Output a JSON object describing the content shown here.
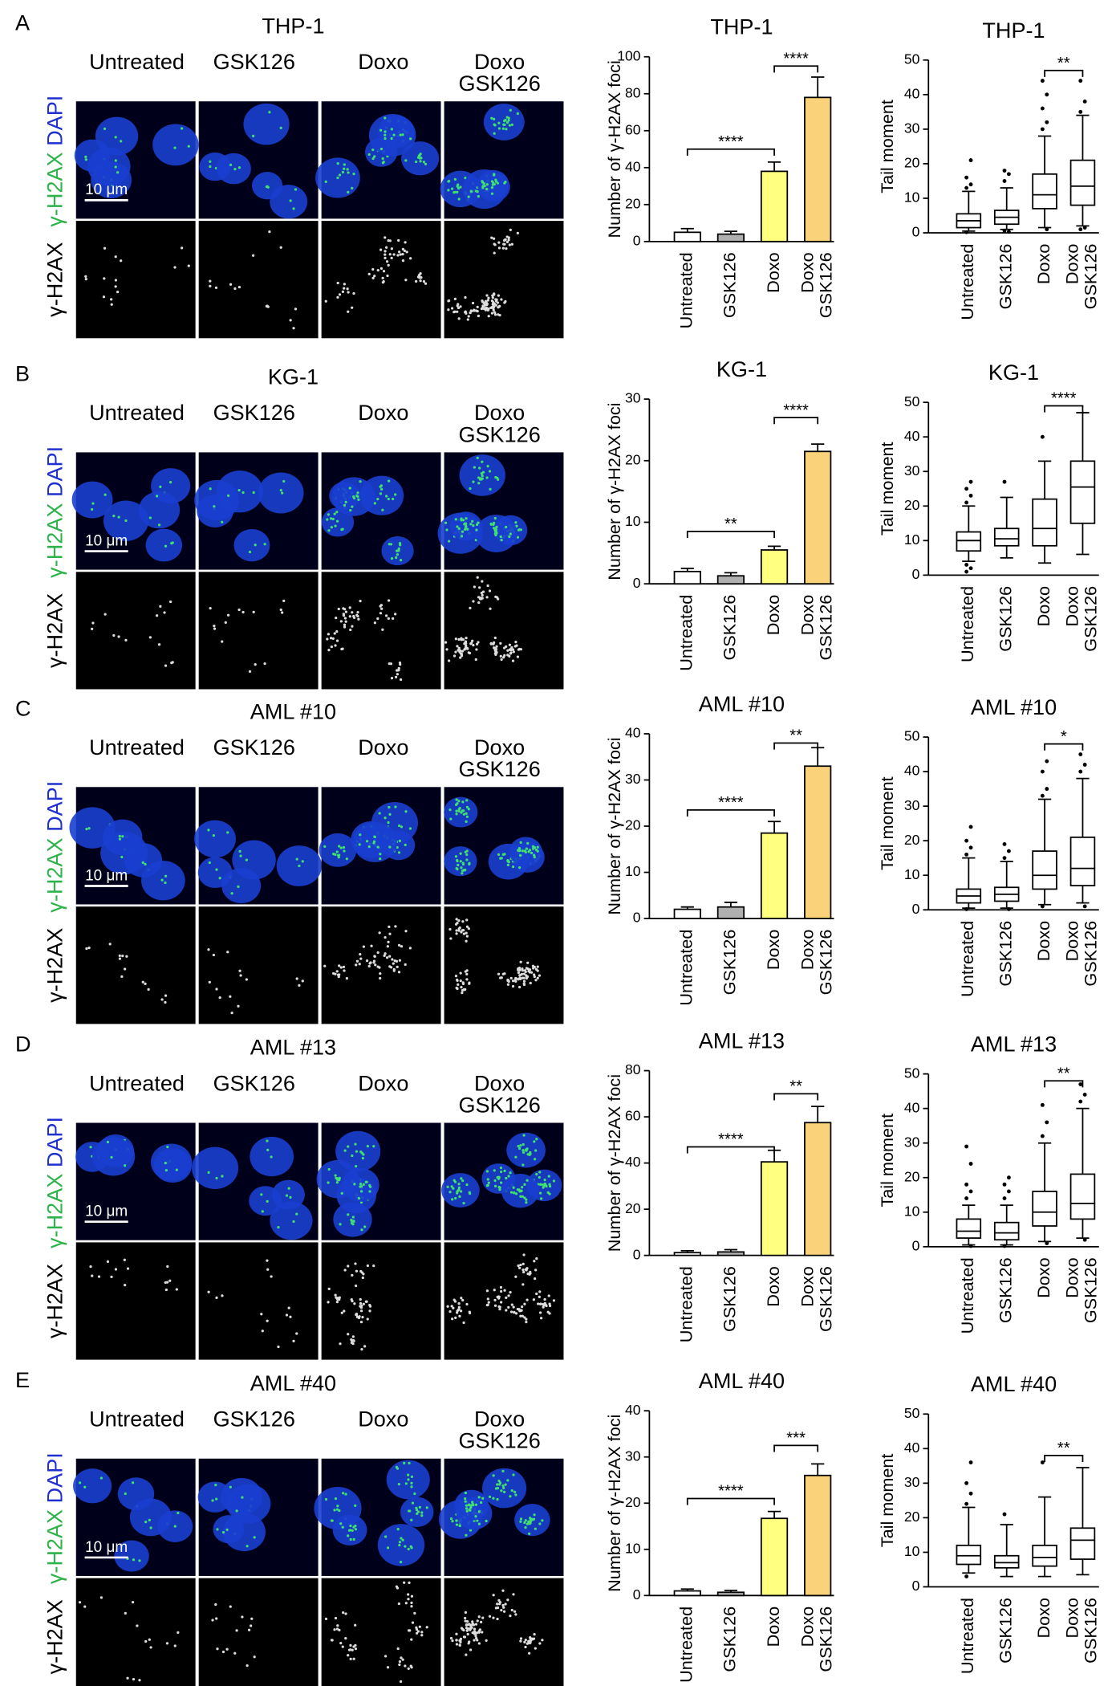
{
  "panels": [
    {
      "letter": "A",
      "title": "THP-1",
      "columns": [
        [
          "Untreated"
        ],
        [
          "GSK126"
        ],
        [
          "Doxo"
        ],
        [
          "Doxo",
          "GSK126"
        ]
      ],
      "row_labels": [
        [
          "γ-H2AX",
          "DAPI"
        ],
        [
          "γ-H2AX"
        ]
      ],
      "scale_bar": "10 μm"
    },
    {
      "letter": "B",
      "title": "KG-1",
      "columns": [
        [
          "Untreated"
        ],
        [
          "GSK126"
        ],
        [
          "Doxo"
        ],
        [
          "Doxo",
          "GSK126"
        ]
      ],
      "row_labels": [
        [
          "γ-H2AX",
          "DAPI"
        ],
        [
          "γ-H2AX"
        ]
      ],
      "scale_bar": "10 μm"
    },
    {
      "letter": "C",
      "title": "AML #10",
      "columns": [
        [
          "Untreated"
        ],
        [
          "GSK126"
        ],
        [
          "Doxo"
        ],
        [
          "Doxo",
          "GSK126"
        ]
      ],
      "row_labels": [
        [
          "γ-H2AX",
          "DAPI"
        ],
        [
          "γ-H2AX"
        ]
      ],
      "scale_bar": "10 μm"
    },
    {
      "letter": "D",
      "title": "AML #13",
      "columns": [
        [
          "Untreated"
        ],
        [
          "GSK126"
        ],
        [
          "Doxo"
        ],
        [
          "Doxo",
          "GSK126"
        ]
      ],
      "row_labels": [
        [
          "γ-H2AX",
          "DAPI"
        ],
        [
          "γ-H2AX"
        ]
      ],
      "scale_bar": "10 μm"
    },
    {
      "letter": "E",
      "title": "AML #40",
      "columns": [
        [
          "Untreated"
        ],
        [
          "GSK126"
        ],
        [
          "Doxo"
        ],
        [
          "Doxo",
          "GSK126"
        ]
      ],
      "row_labels": [
        [
          "γ-H2AX",
          "DAPI"
        ],
        [
          "γ-H2AX"
        ]
      ],
      "scale_bar": "10 μm"
    }
  ],
  "chart_data": [
    {
      "type": "bar",
      "title": "THP-1",
      "ylabel": "Number of γ-H2AX foci",
      "categories": [
        [
          "Untreated"
        ],
        [
          "GSK126"
        ],
        [
          "Doxo"
        ],
        [
          "Doxo",
          "GSK126"
        ]
      ],
      "values": [
        5,
        4,
        38,
        78
      ],
      "errors": [
        2,
        1.5,
        5,
        11
      ],
      "colors": [
        "#ffffff",
        "#b0b0b0",
        "#ffff80",
        "#f9d27a"
      ],
      "ylim": [
        0,
        100
      ],
      "yticks": [
        0,
        20,
        40,
        60,
        80,
        100
      ],
      "brackets": [
        {
          "between": [
            0,
            2
          ],
          "y": 50,
          "label": "****"
        },
        {
          "between": [
            2,
            3
          ],
          "y": 95,
          "label": "****"
        }
      ]
    },
    {
      "type": "box",
      "title": "THP-1",
      "ylabel": "Tail moment",
      "categories": [
        [
          "Untreated"
        ],
        [
          "GSK126"
        ],
        [
          "Doxo"
        ],
        [
          "Doxo",
          "GSK126"
        ]
      ],
      "ylim": [
        0,
        50
      ],
      "yticks": [
        0,
        10,
        20,
        30,
        40,
        50
      ],
      "boxes": [
        {
          "low": 0.5,
          "q1": 1.5,
          "median": 3.5,
          "q3": 5.5,
          "high": 12,
          "outliers": [
            13,
            14,
            16,
            21,
            0.2
          ]
        },
        {
          "low": 1,
          "q1": 2.5,
          "median": 4.5,
          "q3": 6.5,
          "high": 13,
          "outliers": [
            15,
            17,
            18,
            0.3,
            0.6
          ]
        },
        {
          "low": 1.5,
          "q1": 7,
          "median": 11,
          "q3": 17,
          "high": 28,
          "outliers": [
            30,
            32,
            36,
            40,
            44,
            1
          ]
        },
        {
          "low": 2,
          "q1": 8,
          "median": 13.5,
          "q3": 21,
          "high": 34,
          "outliers": [
            35,
            38,
            44,
            1.5,
            1
          ]
        }
      ],
      "brackets": [
        {
          "between": [
            2,
            3
          ],
          "y": 47,
          "label": "**"
        }
      ]
    },
    {
      "type": "bar",
      "title": "KG-1",
      "ylabel": "Number of γ-H2AX foci",
      "categories": [
        [
          "Untreated"
        ],
        [
          "GSK126"
        ],
        [
          "Doxo"
        ],
        [
          "Doxo",
          "GSK126"
        ]
      ],
      "values": [
        2,
        1.3,
        5.5,
        21.5
      ],
      "errors": [
        0.5,
        0.5,
        0.6,
        1.2
      ],
      "colors": [
        "#ffffff",
        "#b0b0b0",
        "#ffff80",
        "#f9d27a"
      ],
      "ylim": [
        0,
        30
      ],
      "yticks": [
        0,
        10,
        20,
        30
      ],
      "brackets": [
        {
          "between": [
            0,
            2
          ],
          "y": 8.5,
          "label": "**"
        },
        {
          "between": [
            2,
            3
          ],
          "y": 27,
          "label": "****"
        }
      ]
    },
    {
      "type": "box",
      "title": "KG-1",
      "ylabel": "Tail moment",
      "categories": [
        [
          "Untreated"
        ],
        [
          "GSK126"
        ],
        [
          "Doxo"
        ],
        [
          "Doxo",
          "GSK126"
        ]
      ],
      "ylim": [
        0,
        50
      ],
      "yticks": [
        0,
        10,
        20,
        30,
        40,
        50
      ],
      "boxes": [
        {
          "low": 4,
          "q1": 7,
          "median": 10,
          "q3": 12.5,
          "high": 20,
          "outliers": [
            21,
            23,
            25,
            27,
            3,
            2,
            1
          ]
        },
        {
          "low": 5,
          "q1": 8.5,
          "median": 10.5,
          "q3": 13.5,
          "high": 22.5,
          "outliers": [
            27
          ]
        },
        {
          "low": 3.5,
          "q1": 8.5,
          "median": 13.5,
          "q3": 22,
          "high": 33,
          "outliers": [
            40
          ]
        },
        {
          "low": 6,
          "q1": 15,
          "median": 25.5,
          "q3": 33,
          "high": 47,
          "outliers": []
        }
      ],
      "brackets": [
        {
          "between": [
            2,
            3
          ],
          "y": 49,
          "label": "****"
        }
      ]
    },
    {
      "type": "bar",
      "title": "AML #10",
      "ylabel": "Number of γ-H2AX foci",
      "categories": [
        [
          "Untreated"
        ],
        [
          "GSK126"
        ],
        [
          "Doxo"
        ],
        [
          "Doxo",
          "GSK126"
        ]
      ],
      "values": [
        2,
        2.5,
        18.5,
        33
      ],
      "errors": [
        0.5,
        1,
        2.5,
        4
      ],
      "colors": [
        "#ffffff",
        "#b0b0b0",
        "#ffff80",
        "#f9d27a"
      ],
      "ylim": [
        0,
        40
      ],
      "yticks": [
        0,
        10,
        20,
        30,
        40
      ],
      "brackets": [
        {
          "between": [
            0,
            2
          ],
          "y": 23.5,
          "label": "****"
        },
        {
          "between": [
            2,
            3
          ],
          "y": 38,
          "label": "**"
        }
      ]
    },
    {
      "type": "box",
      "title": "AML #10",
      "ylabel": "Tail moment",
      "categories": [
        [
          "Untreated"
        ],
        [
          "GSK126"
        ],
        [
          "Doxo"
        ],
        [
          "Doxo",
          "GSK126"
        ]
      ],
      "ylim": [
        0,
        50
      ],
      "yticks": [
        0,
        10,
        20,
        30,
        40,
        50
      ],
      "boxes": [
        {
          "low": 0.5,
          "q1": 2,
          "median": 4,
          "q3": 6,
          "high": 15,
          "outliers": [
            16,
            18,
            20,
            24,
            0.2
          ]
        },
        {
          "low": 0.5,
          "q1": 2.5,
          "median": 4.5,
          "q3": 6.5,
          "high": 14,
          "outliers": [
            15,
            17,
            19,
            0.2
          ]
        },
        {
          "low": 1.5,
          "q1": 6,
          "median": 10,
          "q3": 17,
          "high": 32,
          "outliers": [
            33,
            35,
            40,
            43,
            1
          ]
        },
        {
          "low": 2,
          "q1": 7,
          "median": 12,
          "q3": 21,
          "high": 38,
          "outliers": [
            40,
            42,
            45,
            1
          ]
        }
      ],
      "brackets": [
        {
          "between": [
            2,
            3
          ],
          "y": 48,
          "label": "*"
        }
      ]
    },
    {
      "type": "bar",
      "title": "AML #13",
      "ylabel": "Number of γ-H2AX foci",
      "categories": [
        [
          "Untreated"
        ],
        [
          "GSK126"
        ],
        [
          "Doxo"
        ],
        [
          "Doxo",
          "GSK126"
        ]
      ],
      "values": [
        1.2,
        1.5,
        40.5,
        57.5
      ],
      "errors": [
        0.8,
        1,
        5,
        7
      ],
      "colors": [
        "#ffffff",
        "#b0b0b0",
        "#ffff80",
        "#f9d27a"
      ],
      "ylim": [
        0,
        80
      ],
      "yticks": [
        0,
        20,
        40,
        60,
        80
      ],
      "brackets": [
        {
          "between": [
            0,
            2
          ],
          "y": 47,
          "label": "****"
        },
        {
          "between": [
            2,
            3
          ],
          "y": 70,
          "label": "**"
        }
      ]
    },
    {
      "type": "box",
      "title": "AML #13",
      "ylabel": "Tail moment",
      "categories": [
        [
          "Untreated"
        ],
        [
          "GSK126"
        ],
        [
          "Doxo"
        ],
        [
          "Doxo",
          "GSK126"
        ]
      ],
      "ylim": [
        0,
        50
      ],
      "yticks": [
        0,
        10,
        20,
        30,
        40,
        50
      ],
      "boxes": [
        {
          "low": 0.5,
          "q1": 2.5,
          "median": 4.5,
          "q3": 8,
          "high": 12,
          "outliers": [
            14,
            16,
            18,
            24,
            29,
            0.2
          ]
        },
        {
          "low": 0.5,
          "q1": 2,
          "median": 4,
          "q3": 7,
          "high": 12,
          "outliers": [
            14,
            16,
            18,
            20,
            0.2
          ]
        },
        {
          "low": 1.5,
          "q1": 6,
          "median": 10,
          "q3": 16,
          "high": 30,
          "outliers": [
            32,
            36,
            41,
            1
          ]
        },
        {
          "low": 2.5,
          "q1": 8,
          "median": 12.5,
          "q3": 21,
          "high": 40,
          "outliers": [
            42,
            44,
            47,
            2
          ]
        }
      ],
      "brackets": [
        {
          "between": [
            2,
            3
          ],
          "y": 48,
          "label": "**"
        }
      ]
    },
    {
      "type": "bar",
      "title": "AML #40",
      "ylabel": "Number of γ-H2AX foci",
      "categories": [
        [
          "Untreated"
        ],
        [
          "GSK126"
        ],
        [
          "Doxo"
        ],
        [
          "Doxo",
          "GSK126"
        ]
      ],
      "values": [
        1,
        0.7,
        16.7,
        26
      ],
      "errors": [
        0.4,
        0.4,
        1.5,
        2.5
      ],
      "colors": [
        "#ffffff",
        "#b0b0b0",
        "#ffff80",
        "#f9d27a"
      ],
      "ylim": [
        0,
        40
      ],
      "yticks": [
        0,
        10,
        20,
        30,
        40
      ],
      "brackets": [
        {
          "between": [
            0,
            2
          ],
          "y": 21,
          "label": "****"
        },
        {
          "between": [
            2,
            3
          ],
          "y": 32.5,
          "label": "***"
        }
      ]
    },
    {
      "type": "box",
      "title": "AML #40",
      "ylabel": "Tail moment",
      "categories": [
        [
          "Untreated"
        ],
        [
          "GSK126"
        ],
        [
          "Doxo"
        ],
        [
          "Doxo",
          "GSK126"
        ]
      ],
      "ylim": [
        0,
        50
      ],
      "yticks": [
        0,
        10,
        20,
        30,
        40,
        50
      ],
      "boxes": [
        {
          "low": 4,
          "q1": 6.5,
          "median": 9,
          "q3": 12,
          "high": 23,
          "outliers": [
            24,
            27,
            30,
            36,
            3
          ]
        },
        {
          "low": 3,
          "q1": 5.5,
          "median": 7,
          "q3": 9,
          "high": 18,
          "outliers": [
            21
          ]
        },
        {
          "low": 3,
          "q1": 6,
          "median": 8.5,
          "q3": 12,
          "high": 26,
          "outliers": [
            36
          ]
        },
        {
          "low": 3.5,
          "q1": 8,
          "median": 13.5,
          "q3": 17,
          "high": 34.5,
          "outliers": []
        }
      ],
      "brackets": [
        {
          "between": [
            2,
            3
          ],
          "y": 38,
          "label": "**"
        }
      ]
    }
  ]
}
